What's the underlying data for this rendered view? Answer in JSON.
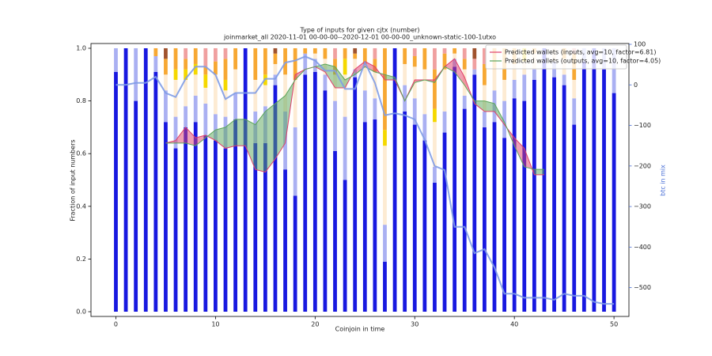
{
  "chart_data": {
    "type": "bar",
    "stacked": true,
    "title": "Type of inputs for given cjtx (number)",
    "subtitle": "joinmarket_all 2020-11-01 00-00-00--2020-12-01 00-00-00_unknown-static-100-1utxo",
    "x_label": "Coinjoin in time",
    "y_label": "Fraction of input numbers",
    "y2_label": "btc in mix",
    "y2_color": "#4a6fd6",
    "x": [
      0,
      1,
      2,
      3,
      4,
      5,
      6,
      7,
      8,
      9,
      10,
      11,
      12,
      13,
      14,
      15,
      16,
      17,
      18,
      19,
      20,
      21,
      22,
      23,
      24,
      25,
      26,
      27,
      28,
      29,
      30,
      31,
      32,
      33,
      34,
      35,
      36,
      37,
      38,
      39,
      40,
      41,
      42,
      43,
      44,
      45,
      46,
      47,
      48,
      49,
      50
    ],
    "xlim": [
      -2.5,
      51.5
    ],
    "xticks": [
      0,
      10,
      20,
      30,
      40,
      50
    ],
    "ylim": [
      -0.018,
      1.018
    ],
    "yticks": [
      {
        "value": 0,
        "label": "0.0"
      },
      0.2,
      0.4,
      0.6,
      0.8,
      {
        "value": 1,
        "label": "1.0"
      }
    ],
    "y2lim": [
      -571,
      102
    ],
    "y2ticks": [
      100,
      0,
      {
        "value": -100,
        "label": "−100"
      },
      {
        "value": -200,
        "label": "−200"
      },
      {
        "value": -300,
        "label": "−300"
      },
      {
        "value": -400,
        "label": "−400"
      },
      {
        "value": -500,
        "label": "−500"
      }
    ],
    "legend": "upper right",
    "fill_between": true,
    "series": [
      {
        "color": "#1818e0",
        "values": [
          0.91,
          1,
          0.8,
          1,
          0.91,
          0.72,
          0.62,
          0.7,
          0.72,
          0.67,
          0.65,
          0.62,
          0.73,
          1,
          0.64,
          0.64,
          0.86,
          0.54,
          0.44,
          0.9,
          0.91,
          0.84,
          0.61,
          0.5,
          0.89,
          0.72,
          0.73,
          0.19,
          1,
          0.76,
          0.71,
          0.65,
          0.49,
          0.68,
          0.93,
          0.77,
          0.9,
          0.7,
          0.72,
          0.66,
          0.81,
          0.8,
          0.88,
          1,
          0.89,
          0.86,
          0.71,
          0.95,
          1,
          0.92,
          0.83
        ]
      },
      {
        "color": "#aab0f2",
        "values": [
          0.09,
          0,
          0.2,
          0,
          0.06,
          0.12,
          0.12,
          0.08,
          0.1,
          0.12,
          0.1,
          0.12,
          0.1,
          0,
          0.12,
          0.14,
          0.04,
          0.22,
          0.26,
          0.08,
          0.05,
          0.06,
          0.19,
          0.24,
          0.03,
          0.12,
          0.08,
          0.14,
          0,
          0.1,
          0.1,
          0.1,
          0.06,
          0.08,
          0.03,
          0.05,
          0.02,
          0.06,
          0.12,
          0.14,
          0.07,
          0.1,
          0.04,
          0,
          0.06,
          0.04,
          0.1,
          0.05,
          0,
          0.08,
          0.17
        ]
      },
      {
        "color": "#fdebd3",
        "values": [
          0,
          0,
          0,
          0,
          0,
          0.06,
          0.14,
          0.1,
          0.08,
          0.06,
          0.15,
          0.1,
          0.09,
          0,
          0.12,
          0.08,
          0.04,
          0.14,
          0.18,
          0,
          0.02,
          0.06,
          0.1,
          0.16,
          0.04,
          0.1,
          0.1,
          0.3,
          0,
          0.08,
          0.12,
          0.17,
          0.17,
          0.16,
          0.02,
          0.1,
          0,
          0.1,
          0.08,
          0.08,
          0.06,
          0.05,
          0.06,
          0,
          0.05,
          0.06,
          0.07,
          0,
          0,
          0,
          0
        ]
      },
      {
        "color": "#f5d800",
        "values": [
          0,
          0,
          0,
          0,
          0,
          0,
          0.04,
          0.04,
          0.04,
          0.05,
          0,
          0.04,
          0,
          0,
          0,
          0.04,
          0,
          0,
          0,
          0,
          0,
          0,
          0,
          0.06,
          0,
          0,
          0,
          0.06,
          0,
          0,
          0,
          0,
          0.05,
          0,
          0,
          0,
          0,
          0,
          0,
          0,
          0,
          0.05,
          0,
          0,
          0,
          0,
          0,
          0,
          0,
          0,
          0
        ]
      },
      {
        "color": "#f7a833",
        "values": [
          0,
          0,
          0,
          0,
          0.03,
          0.06,
          0.08,
          0.04,
          0.06,
          0.03,
          0.05,
          0.08,
          0.08,
          0,
          0.12,
          0.1,
          0.04,
          0.1,
          0.12,
          0.02,
          0.02,
          0.04,
          0.06,
          0.04,
          0.02,
          0.06,
          0.05,
          0.31,
          0,
          0.06,
          0.04,
          0.08,
          0.15,
          0.06,
          0.02,
          0.04,
          0,
          0.08,
          0.08,
          0.12,
          0.06,
          0,
          0.02,
          0,
          0,
          0.04,
          0.1,
          0,
          0,
          0,
          0
        ]
      },
      {
        "color": "#f0a0a0",
        "values": [
          0,
          0,
          0,
          0,
          0,
          0,
          0,
          0.04,
          0,
          0.07,
          0.05,
          0.04,
          0,
          0,
          0,
          0,
          0,
          0,
          0,
          0,
          0,
          0,
          0.04,
          0,
          0,
          0,
          0.04,
          0,
          0,
          0,
          0.03,
          0,
          0.08,
          0.02,
          0,
          0.04,
          0.04,
          0.06,
          0,
          0,
          0,
          0,
          0,
          0,
          0,
          0,
          0.02,
          0,
          0,
          0,
          0
        ]
      },
      {
        "color": "#a0522d",
        "values": [
          0,
          0,
          0,
          0,
          0,
          0.04,
          0,
          0,
          0,
          0,
          0,
          0,
          0,
          0,
          0,
          0,
          0.02,
          0,
          0,
          0,
          0,
          0,
          0,
          0,
          0.02,
          0,
          0,
          0,
          0,
          0,
          0,
          0,
          0,
          0,
          0,
          0,
          0.04,
          0,
          0,
          0,
          0,
          0,
          0,
          0,
          0,
          0,
          0,
          0,
          0,
          0,
          0
        ]
      },
      {
        "type": "line",
        "name": "Predicted wallets (inputs, avg=10, factor=6.81)",
        "color": "#e0406a",
        "values": [
          null,
          null,
          null,
          null,
          null,
          0.64,
          0.65,
          0.7,
          0.66,
          0.67,
          0.65,
          0.62,
          0.63,
          0.63,
          0.54,
          0.53,
          0.58,
          0.64,
          0.9,
          0.92,
          0.93,
          0.91,
          0.85,
          0.85,
          0.92,
          0.95,
          0.93,
          0.88,
          0.88,
          0.8,
          0.88,
          0.88,
          0.88,
          0.93,
          0.96,
          0.89,
          0.79,
          0.76,
          0.76,
          0.71,
          0.66,
          0.62,
          0.52,
          0.52,
          null,
          null,
          null,
          null,
          null,
          null,
          null
        ]
      },
      {
        "type": "line",
        "name": "Predicted wallets (outputs, avg=10, factor=4.05)",
        "color": "#5aa55a",
        "values": [
          null,
          null,
          null,
          null,
          null,
          0.64,
          0.64,
          0.64,
          0.63,
          0.66,
          0.69,
          0.7,
          0.73,
          0.73,
          0.71,
          0.76,
          0.79,
          0.82,
          0.88,
          0.92,
          0.93,
          0.94,
          0.93,
          0.88,
          0.9,
          0.93,
          0.91,
          0.9,
          0.89,
          0.8,
          0.87,
          0.88,
          0.87,
          0.93,
          0.91,
          0.86,
          0.8,
          0.8,
          0.79,
          0.72,
          0.63,
          0.55,
          0.54,
          0.54,
          null,
          null,
          null,
          null,
          null,
          null,
          null
        ]
      },
      {
        "type": "line",
        "axis": "y2",
        "color": "#7f9ce6",
        "values": [
          0,
          0,
          5,
          5,
          20,
          -20,
          -30,
          15,
          45,
          45,
          25,
          -35,
          -20,
          -20,
          -20,
          15,
          15,
          55,
          60,
          70,
          60,
          35,
          35,
          -10,
          -10,
          55,
          5,
          -75,
          -70,
          -75,
          -85,
          -135,
          -200,
          -210,
          -350,
          -350,
          -415,
          -405,
          -450,
          -515,
          -515,
          -525,
          -525,
          -525,
          -530,
          -515,
          -520,
          -520,
          -535,
          -540,
          -540
        ]
      }
    ]
  }
}
